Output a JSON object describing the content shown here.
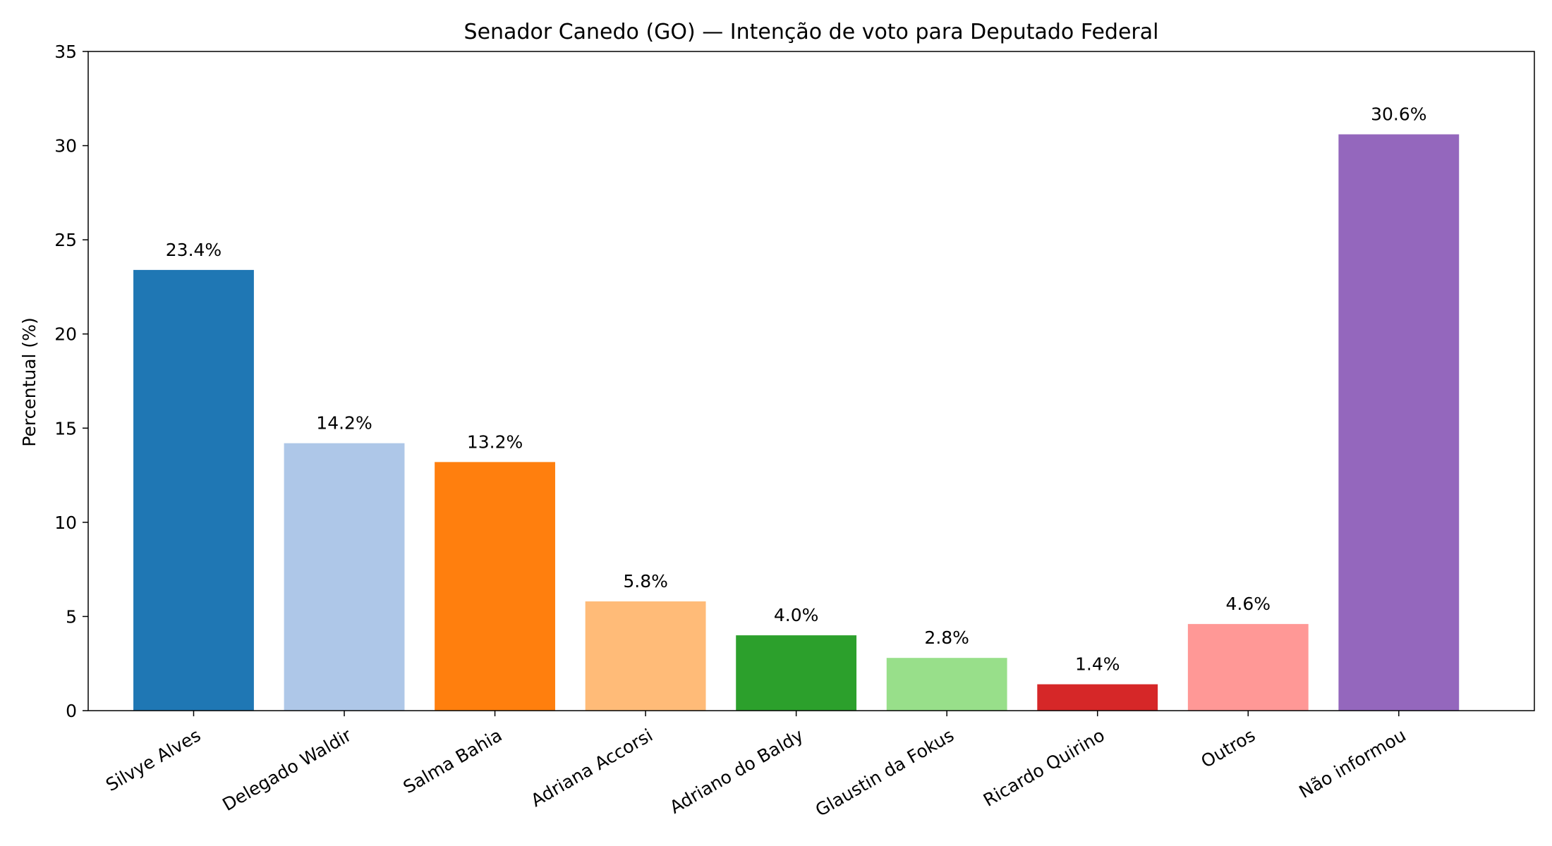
{
  "chart_data": {
    "type": "bar",
    "title": "Senador Canedo (GO) — Intenção de voto para Deputado Federal",
    "xlabel": "",
    "ylabel": "Percentual (%)",
    "ylim": [
      0,
      35
    ],
    "yticks": [
      0,
      5,
      10,
      15,
      20,
      25,
      30,
      35
    ],
    "categories": [
      "Silvye Alves",
      "Delegado Waldir",
      "Salma Bahia",
      "Adriana Accorsi",
      "Adriano do Baldy",
      "Glaustin da Fokus",
      "Ricardo Quirino",
      "Outros",
      "Não informou"
    ],
    "values": [
      23.4,
      14.2,
      13.2,
      5.8,
      4.0,
      2.8,
      1.4,
      4.6,
      30.6
    ],
    "data_labels": [
      "23.4%",
      "14.2%",
      "13.2%",
      "5.8%",
      "4.0%",
      "2.8%",
      "1.4%",
      "4.6%",
      "30.6%"
    ],
    "colors": [
      "#1f77b4",
      "#aec7e8",
      "#ff7f0e",
      "#ffbb78",
      "#2ca02c",
      "#98df8a",
      "#d62728",
      "#ff9896",
      "#9467bd"
    ],
    "grid": false,
    "legend": "none"
  }
}
